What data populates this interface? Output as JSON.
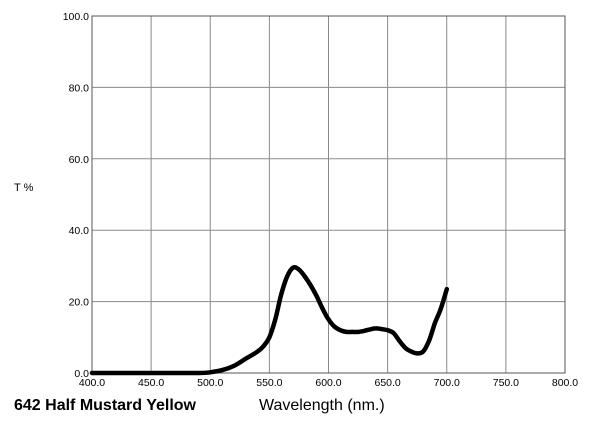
{
  "chart_data": {
    "type": "line",
    "title": "642 Half Mustard Yellow",
    "xlabel": "Wavelength (nm.)",
    "ylabel": "T %",
    "xlim": [
      400,
      800
    ],
    "ylim": [
      0,
      100
    ],
    "x_ticks": [
      "400.0",
      "450.0",
      "500.0",
      "550.0",
      "600.0",
      "650.0",
      "700.0",
      "750.0",
      "800.0"
    ],
    "y_ticks": [
      "0.0",
      "20.0",
      "40.0",
      "60.0",
      "80.0",
      "100.0"
    ],
    "grid": true,
    "series": [
      {
        "color": "#000000",
        "x": [
          400,
          450,
          490,
          500,
          510,
          520,
          530,
          540,
          545,
          550,
          555,
          560,
          565,
          570,
          575,
          580,
          585,
          590,
          595,
          600,
          605,
          610,
          615,
          620,
          625,
          630,
          635,
          640,
          645,
          650,
          655,
          660,
          665,
          670,
          675,
          680,
          685,
          690,
          695,
          700
        ],
        "y": [
          0,
          0,
          0,
          0.2,
          0.8,
          2,
          4,
          6,
          7.5,
          10,
          15,
          22,
          27,
          29.5,
          29,
          27,
          24.5,
          21.5,
          18,
          15,
          13,
          12,
          11.5,
          11.5,
          11.5,
          11.8,
          12.2,
          12.5,
          12.3,
          12,
          11.2,
          9,
          7,
          6,
          5.5,
          6,
          9,
          14,
          18,
          23.5
        ]
      }
    ]
  }
}
